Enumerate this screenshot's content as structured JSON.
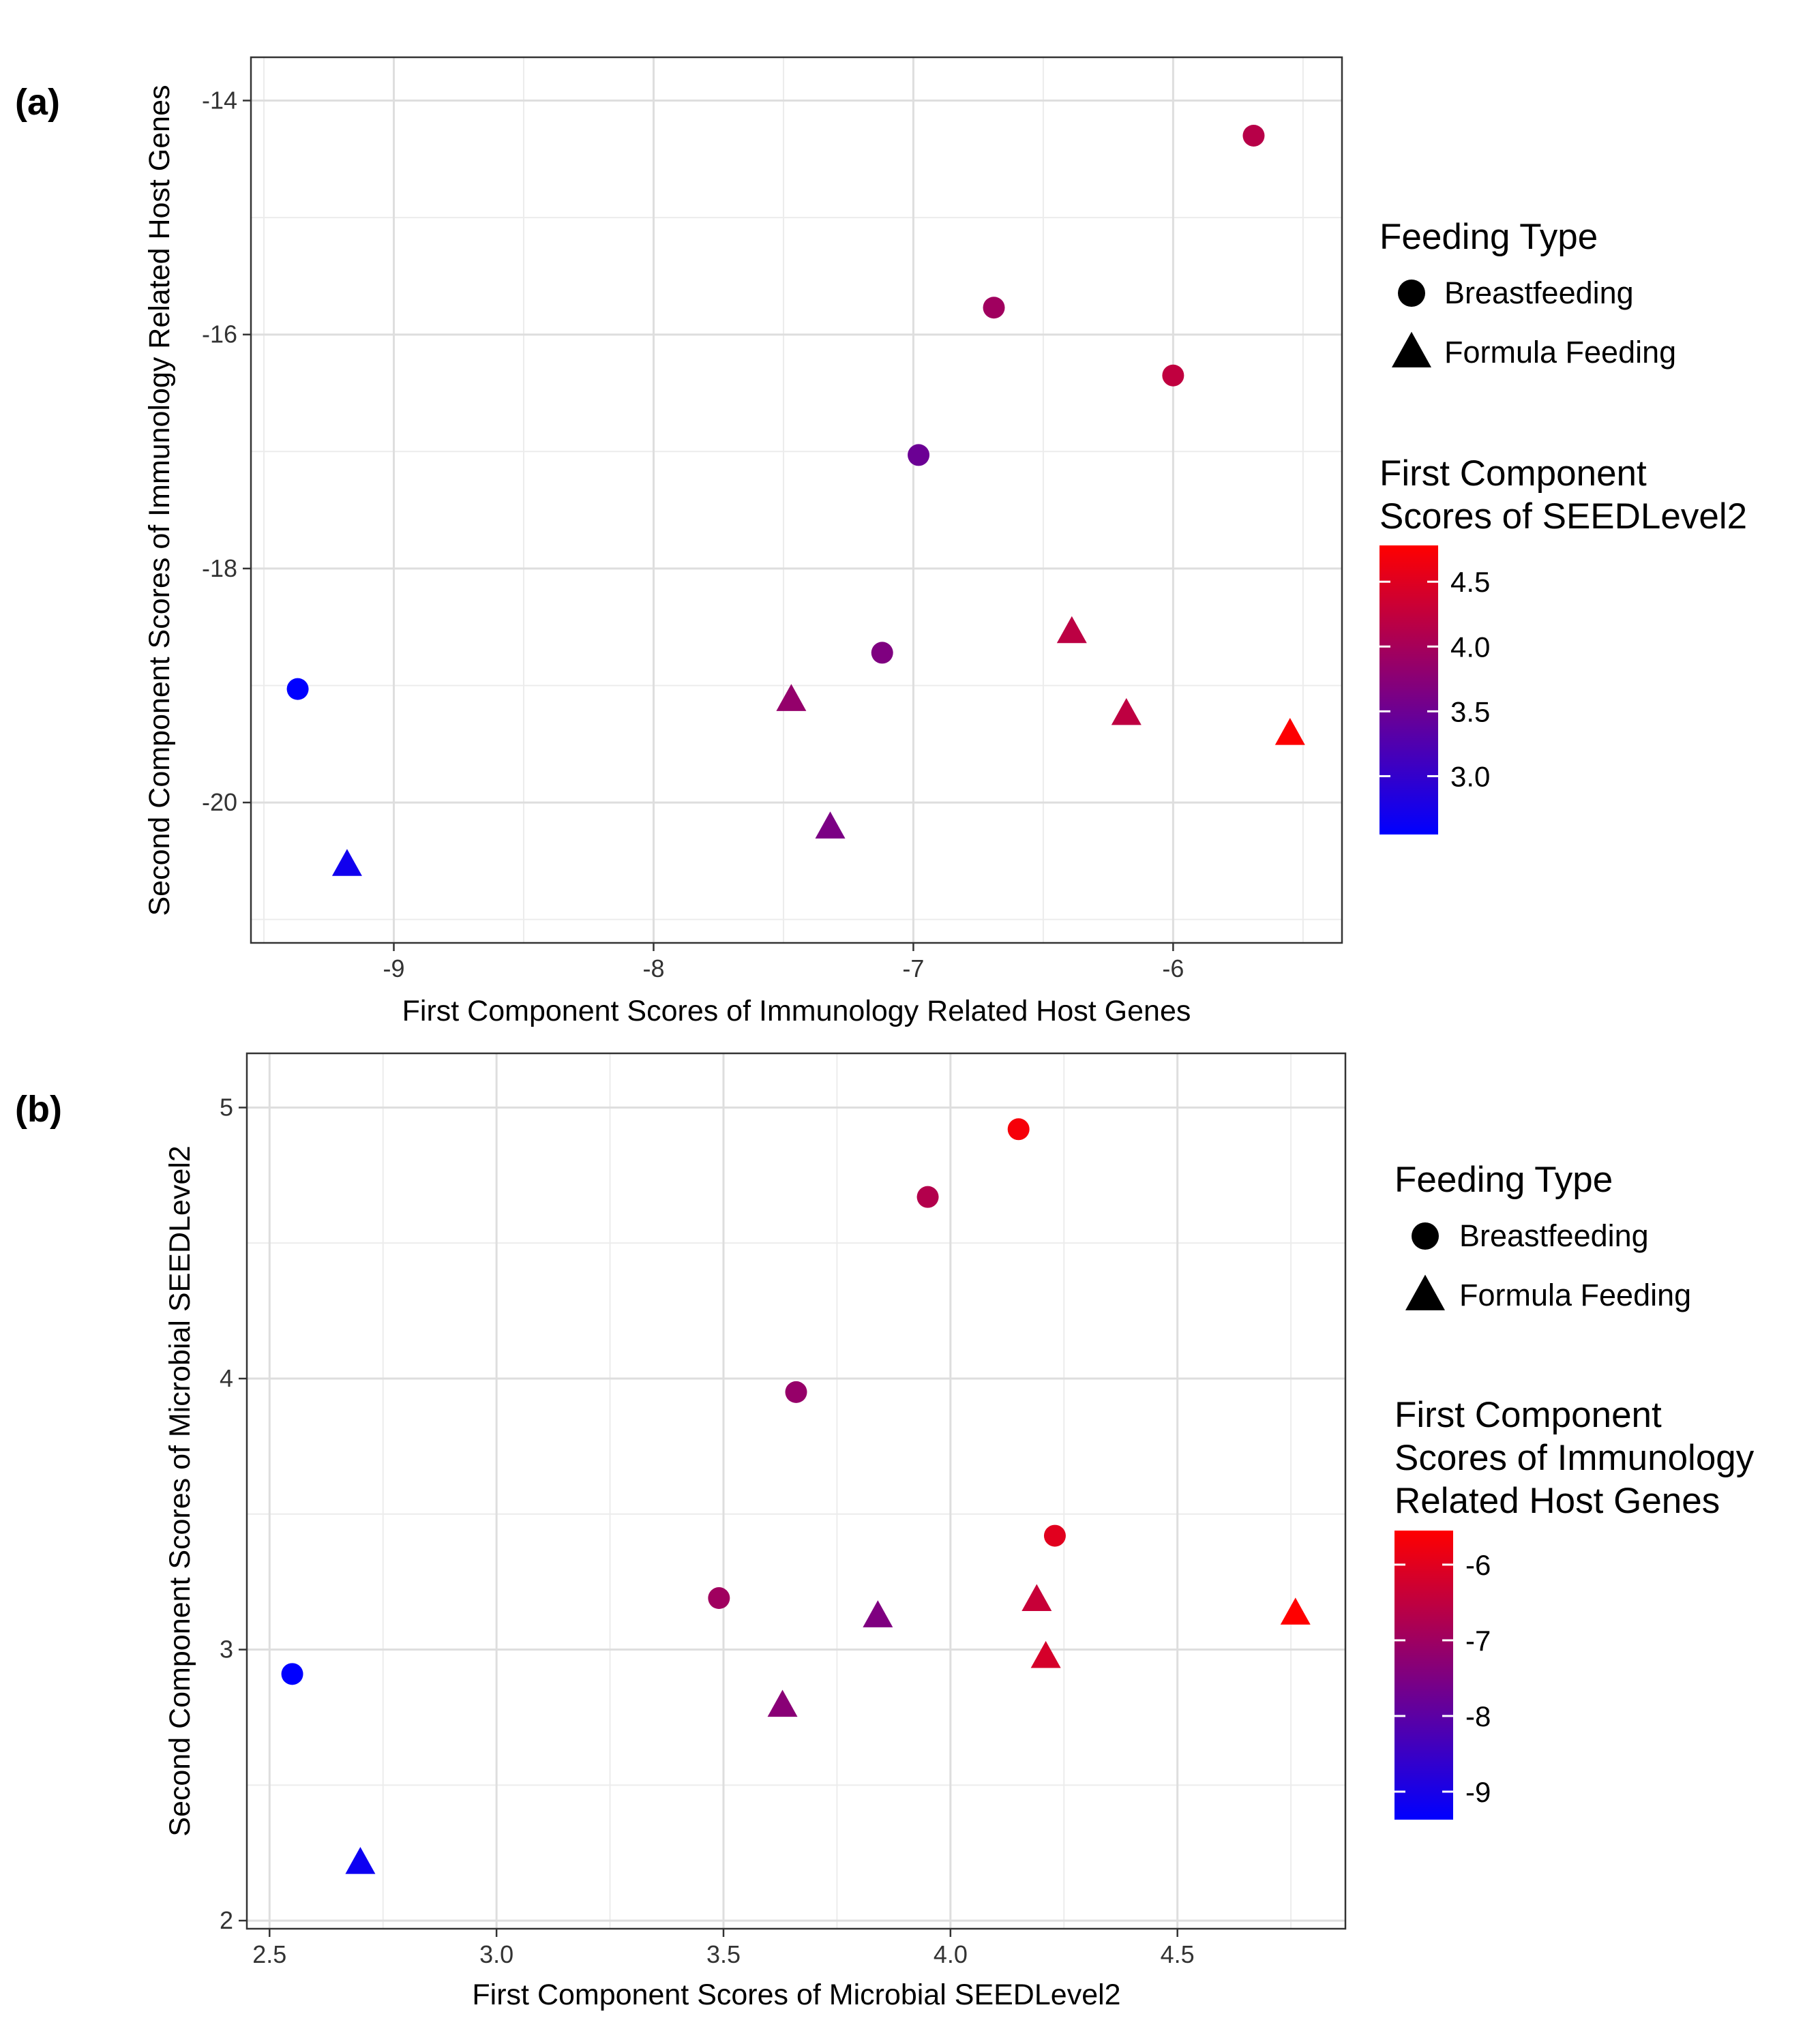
{
  "chart_data": [
    {
      "panel_label": "(a)",
      "type": "scatter",
      "xlabel": "First Component Scores of Immunology Related Host Genes",
      "ylabel": "Second Component Scores of Immunology Related Host Genes",
      "xlim": [
        -9.55,
        -5.35
      ],
      "ylim": [
        -21.2,
        -13.63
      ],
      "xticks": [
        -9,
        -8,
        -7,
        -6
      ],
      "yticks": [
        -14,
        -16,
        -18,
        -20
      ],
      "grid": true,
      "legend": {
        "placement": "right",
        "shape_title": "Feeding Type",
        "shapes": [
          {
            "label": "Breastfeeding",
            "shape": "circle"
          },
          {
            "label": "Formula Feeding",
            "shape": "triangle"
          }
        ],
        "color_title": [
          "First Component",
          "Scores of SEEDLevel2"
        ],
        "color_range": [
          2.55,
          4.78
        ],
        "color_ticks": [
          4.5,
          4.0,
          3.5,
          3.0
        ],
        "color_tick_labels": [
          "4.5",
          "4.0",
          "3.5",
          "3.0"
        ],
        "low_color": "#0000ff",
        "high_color": "#ff0000"
      },
      "points": [
        {
          "x": -9.37,
          "y": -19.03,
          "color_value": 2.55,
          "feeding": "Breastfeeding"
        },
        {
          "x": -5.69,
          "y": -14.3,
          "color_value": 4.15,
          "feeding": "Breastfeeding"
        },
        {
          "x": -6.69,
          "y": -15.77,
          "color_value": 3.95,
          "feeding": "Breastfeeding"
        },
        {
          "x": -6.0,
          "y": -16.35,
          "color_value": 4.23,
          "feeding": "Breastfeeding"
        },
        {
          "x": -6.98,
          "y": -17.03,
          "color_value": 3.49,
          "feeding": "Breastfeeding"
        },
        {
          "x": -7.12,
          "y": -18.72,
          "color_value": 3.66,
          "feeding": "Breastfeeding"
        },
        {
          "x": -9.18,
          "y": -20.54,
          "color_value": 2.7,
          "feeding": "Formula Feeding"
        },
        {
          "x": -7.47,
          "y": -19.13,
          "color_value": 3.84,
          "feeding": "Formula Feeding"
        },
        {
          "x": -7.32,
          "y": -20.22,
          "color_value": 3.63,
          "feeding": "Formula Feeding"
        },
        {
          "x": -6.39,
          "y": -18.55,
          "color_value": 4.19,
          "feeding": "Formula Feeding"
        },
        {
          "x": -6.18,
          "y": -19.25,
          "color_value": 4.21,
          "feeding": "Formula Feeding"
        },
        {
          "x": -5.55,
          "y": -19.42,
          "color_value": 4.76,
          "feeding": "Formula Feeding"
        }
      ]
    },
    {
      "panel_label": "(b)",
      "type": "scatter",
      "xlabel": "First Component Scores of Microbial SEEDLevel2",
      "ylabel": "Second Component Scores of Microbial SEEDLevel2",
      "xlim": [
        2.45,
        4.87
      ],
      "ylim": [
        1.97,
        5.2
      ],
      "xticks": [
        2.5,
        3.0,
        3.5,
        4.0,
        4.5
      ],
      "xtick_labels": [
        "2.5",
        "3.0",
        "3.5",
        "4.0",
        "4.5"
      ],
      "yticks": [
        2,
        3,
        4,
        5
      ],
      "grid": true,
      "legend": {
        "placement": "right",
        "shape_title": "Feeding Type",
        "shapes": [
          {
            "label": "Breastfeeding",
            "shape": "circle"
          },
          {
            "label": "Formula Feeding",
            "shape": "triangle"
          }
        ],
        "color_title": [
          "First Component",
          "Scores of Immunology",
          "Related Host Genes"
        ],
        "color_range": [
          -9.37,
          -5.55
        ],
        "color_ticks": [
          -6,
          -7,
          -8,
          -9
        ],
        "color_tick_labels": [
          "-6",
          "-7",
          "-8",
          "-9"
        ],
        "low_color": "#0000ff",
        "high_color": "#ff0000"
      },
      "points": [
        {
          "x": 2.55,
          "y": 2.91,
          "color_value": -9.37,
          "feeding": "Breastfeeding"
        },
        {
          "x": 4.15,
          "y": 4.92,
          "color_value": -5.69,
          "feeding": "Breastfeeding"
        },
        {
          "x": 3.95,
          "y": 4.67,
          "color_value": -6.69,
          "feeding": "Breastfeeding"
        },
        {
          "x": 3.66,
          "y": 3.95,
          "color_value": -7.12,
          "feeding": "Breastfeeding"
        },
        {
          "x": 4.23,
          "y": 3.42,
          "color_value": -6.0,
          "feeding": "Breastfeeding"
        },
        {
          "x": 3.49,
          "y": 3.19,
          "color_value": -6.98,
          "feeding": "Breastfeeding"
        },
        {
          "x": 2.7,
          "y": 2.21,
          "color_value": -9.18,
          "feeding": "Formula Feeding"
        },
        {
          "x": 3.84,
          "y": 3.12,
          "color_value": -7.47,
          "feeding": "Formula Feeding"
        },
        {
          "x": 3.63,
          "y": 2.79,
          "color_value": -7.32,
          "feeding": "Formula Feeding"
        },
        {
          "x": 4.19,
          "y": 3.18,
          "color_value": -6.39,
          "feeding": "Formula Feeding"
        },
        {
          "x": 4.21,
          "y": 2.97,
          "color_value": -6.18,
          "feeding": "Formula Feeding"
        },
        {
          "x": 4.76,
          "y": 3.13,
          "color_value": -5.55,
          "feeding": "Formula Feeding"
        }
      ]
    }
  ]
}
